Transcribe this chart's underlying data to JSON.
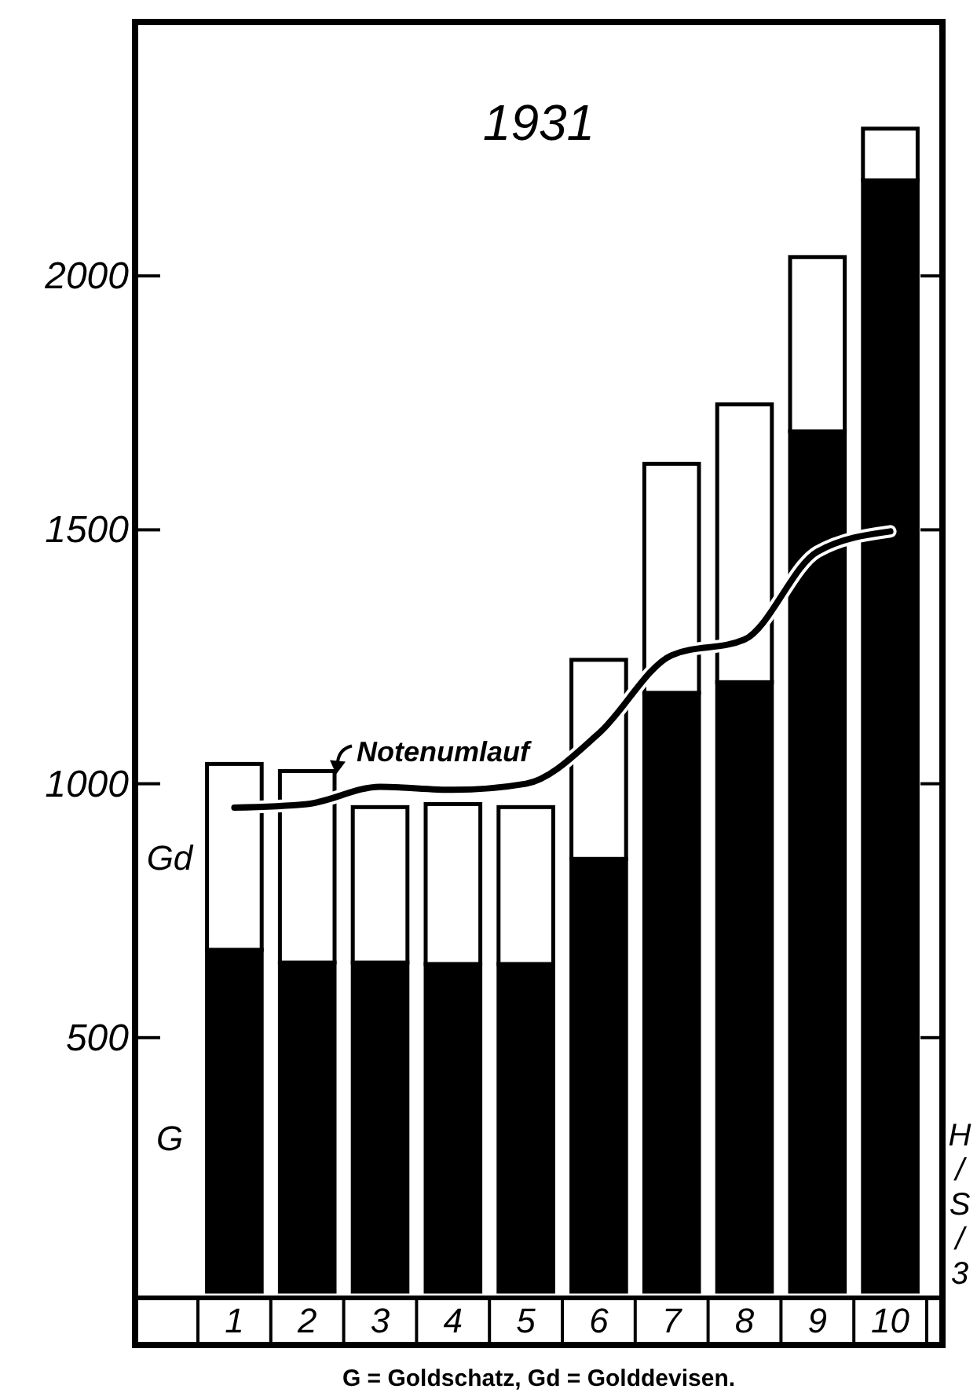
{
  "chart_data": {
    "type": "bar",
    "title": "1931",
    "stacked": true,
    "categories": [
      "1",
      "2",
      "3",
      "4",
      "5",
      "6",
      "7",
      "8",
      "9",
      "10"
    ],
    "series": [
      {
        "name": "G",
        "color": "#000000",
        "values": [
          673,
          648,
          648,
          645,
          645,
          852,
          1179,
          1200,
          1694,
          2188
        ]
      },
      {
        "name": "Gd",
        "color": "#ffffff",
        "values": [
          366,
          377,
          306,
          315,
          309,
          392,
          451,
          547,
          343,
          102
        ]
      },
      {
        "name": "Notenumlauf",
        "type": "line",
        "color": "#000000",
        "values": [
          953,
          960,
          994,
          988,
          1000,
          1099,
          1253,
          1284,
          1457,
          1497
        ]
      }
    ],
    "ylim": [
      0,
      2500
    ],
    "yticks": [
      500,
      1000,
      1500,
      2000
    ],
    "grid": false,
    "marker": "none",
    "line_style": "solid",
    "annotations": [
      "G = Goldschatz, Gd = Golddevisen.",
      "H/S/3"
    ]
  }
}
